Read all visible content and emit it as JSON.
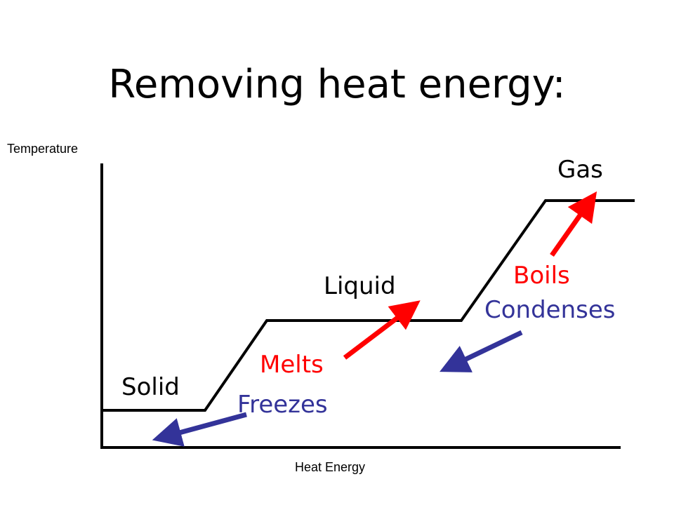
{
  "title": "Removing heat energy:",
  "axes": {
    "y_label": "Temperature",
    "x_label": "Heat Energy"
  },
  "phases": {
    "solid": "Solid",
    "liquid": "Liquid",
    "gas": "Gas"
  },
  "transitions": {
    "melts": "Melts",
    "freezes": "Freezes",
    "boils": "Boils",
    "condenses": "Condenses"
  },
  "colors": {
    "heating": "#ff0000",
    "cooling": "#333399",
    "curve": "#000000"
  }
}
